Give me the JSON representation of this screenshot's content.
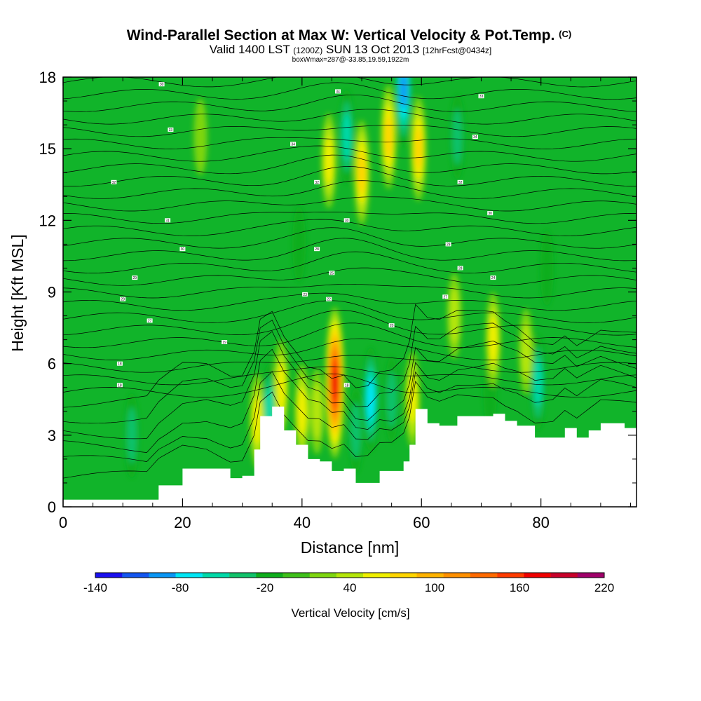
{
  "chart_data": {
    "type": "heatmap",
    "title": "Wind-Parallel Section at Max W: Vertical Velocity & Pot.Temp.",
    "title_mark": "(C)",
    "subtitle_main": "Valid 1400 LST",
    "subtitle_utc": "(1200Z)",
    "subtitle_date": "SUN 13 Oct 2013",
    "subtitle_fcst": "[12hrFcst@0434z]",
    "box_info": "boxWmax=287@-33.85,19.59,1922m",
    "xlabel": "Distance [nm]",
    "ylabel": "Height [Kft MSL]",
    "xlim": [
      0,
      96
    ],
    "ylim": [
      0,
      18
    ],
    "xticks": [
      0,
      20,
      40,
      60,
      80
    ],
    "yticks": [
      0,
      3,
      6,
      9,
      12,
      15,
      18
    ],
    "x_tick_labels": [
      "0",
      "20",
      "40",
      "60",
      "80"
    ],
    "y_tick_labels": [
      "0",
      "3",
      "6",
      "9",
      "12",
      "15",
      "18"
    ],
    "colorbar": {
      "label": "Vertical Velocity [cm/s]",
      "levels": [
        -140,
        -120,
        -100,
        -80,
        -60,
        -40,
        -20,
        0,
        20,
        40,
        60,
        80,
        100,
        120,
        140,
        160,
        180,
        200,
        220
      ],
      "tick_labels": [
        "-140",
        "-80",
        "-20",
        "40",
        "100",
        "160",
        "220"
      ],
      "tick_values": [
        -140,
        -80,
        -20,
        40,
        100,
        160,
        220
      ],
      "colors": [
        "#1a10f0",
        "#1456f0",
        "#0a96f5",
        "#00e6f5",
        "#00d9a8",
        "#11c26a",
        "#0fae1c",
        "#3fc01a",
        "#7ed610",
        "#b4e60a",
        "#f0f000",
        "#ffd600",
        "#ffb300",
        "#ff9000",
        "#ff6a00",
        "#ff3c00",
        "#f00000",
        "#c8002a",
        "#a0006a"
      ]
    },
    "terrain": {
      "x": [
        0,
        8,
        14,
        16,
        20,
        24,
        28,
        30,
        32,
        33,
        35,
        37,
        39,
        41,
        43,
        45,
        47,
        49,
        51,
        53,
        55,
        57,
        58,
        59,
        61,
        63,
        66,
        72,
        74,
        76,
        79,
        82,
        84,
        86,
        88,
        90,
        94,
        96
      ],
      "y": [
        0.3,
        0.3,
        0.3,
        0.9,
        1.6,
        1.6,
        1.2,
        1.3,
        2.4,
        3.8,
        4.2,
        3.2,
        2.6,
        2.0,
        1.9,
        1.5,
        1.6,
        1.0,
        1.0,
        1.5,
        1.5,
        1.9,
        2.6,
        4.1,
        3.5,
        3.4,
        3.8,
        3.9,
        3.6,
        3.4,
        2.9,
        2.9,
        3.3,
        2.9,
        3.2,
        3.5,
        3.3,
        3.2
      ]
    },
    "updrafts": [
      {
        "x": 45.5,
        "y": 5.2,
        "value": 180
      },
      {
        "x": 42.5,
        "y": 4.0,
        "value": 40
      },
      {
        "x": 40.0,
        "y": 4.0,
        "value": 60
      },
      {
        "x": 36.5,
        "y": 5.0,
        "value": 60
      },
      {
        "x": 32.5,
        "y": 3.6,
        "value": 60
      },
      {
        "x": 58.5,
        "y": 4.5,
        "value": 60
      },
      {
        "x": 44.5,
        "y": 14.5,
        "value": 60
      },
      {
        "x": 50.0,
        "y": 14.0,
        "value": 80
      },
      {
        "x": 54.5,
        "y": 15.5,
        "value": 80
      },
      {
        "x": 59.5,
        "y": 15.0,
        "value": 80
      },
      {
        "x": 65.5,
        "y": 8.0,
        "value": 40
      },
      {
        "x": 72.0,
        "y": 7.0,
        "value": 60
      },
      {
        "x": 77.5,
        "y": 6.5,
        "value": 40
      },
      {
        "x": 23.0,
        "y": 15.5,
        "value": 20
      }
    ],
    "downdrafts": [
      {
        "x": 51.5,
        "y": 4.5,
        "value": -80
      },
      {
        "x": 49.0,
        "y": 3.2,
        "value": -40
      },
      {
        "x": 55.0,
        "y": 4.5,
        "value": -40
      },
      {
        "x": 79.5,
        "y": 5.2,
        "value": -60
      },
      {
        "x": 71.5,
        "y": 4.8,
        "value": -20
      },
      {
        "x": 11.5,
        "y": 3.0,
        "value": -40
      },
      {
        "x": 34.5,
        "y": 4.0,
        "value": -60
      },
      {
        "x": 47.5,
        "y": 15.5,
        "value": -60
      },
      {
        "x": 57.0,
        "y": 17.5,
        "value": -100
      },
      {
        "x": 66.0,
        "y": 15.5,
        "value": -40
      },
      {
        "x": 81.0,
        "y": 10.0,
        "value": -20
      },
      {
        "x": 39.5,
        "y": 11.0,
        "value": -20
      }
    ],
    "contour_labels": [
      {
        "x": 16.5,
        "y": 17.7,
        "text": "30"
      },
      {
        "x": 18.0,
        "y": 15.8,
        "text": "33"
      },
      {
        "x": 8.5,
        "y": 13.6,
        "text": "32"
      },
      {
        "x": 17.5,
        "y": 12.0,
        "text": "31"
      },
      {
        "x": 20.0,
        "y": 10.8,
        "text": "30"
      },
      {
        "x": 12.0,
        "y": 9.6,
        "text": "29"
      },
      {
        "x": 10.0,
        "y": 8.7,
        "text": "28"
      },
      {
        "x": 14.5,
        "y": 7.8,
        "text": "27"
      },
      {
        "x": 27.0,
        "y": 6.9,
        "text": "19"
      },
      {
        "x": 9.5,
        "y": 6.0,
        "text": "18"
      },
      {
        "x": 9.5,
        "y": 5.1,
        "text": "18"
      },
      {
        "x": 46.0,
        "y": 17.4,
        "text": "34"
      },
      {
        "x": 70.0,
        "y": 17.2,
        "text": "33"
      },
      {
        "x": 38.5,
        "y": 15.2,
        "text": "34"
      },
      {
        "x": 69.0,
        "y": 15.5,
        "text": "34"
      },
      {
        "x": 42.5,
        "y": 13.6,
        "text": "32"
      },
      {
        "x": 66.5,
        "y": 13.6,
        "text": "32"
      },
      {
        "x": 47.5,
        "y": 12.0,
        "text": "30"
      },
      {
        "x": 71.5,
        "y": 12.3,
        "text": "30"
      },
      {
        "x": 42.5,
        "y": 10.8,
        "text": "28"
      },
      {
        "x": 64.5,
        "y": 11.0,
        "text": "29"
      },
      {
        "x": 45.0,
        "y": 9.8,
        "text": "25"
      },
      {
        "x": 66.5,
        "y": 10.0,
        "text": "28"
      },
      {
        "x": 40.5,
        "y": 8.9,
        "text": "23"
      },
      {
        "x": 44.5,
        "y": 8.7,
        "text": "22"
      },
      {
        "x": 72.0,
        "y": 9.6,
        "text": "24"
      },
      {
        "x": 64.0,
        "y": 8.8,
        "text": "27"
      },
      {
        "x": 55.0,
        "y": 7.6,
        "text": "20"
      },
      {
        "x": 47.5,
        "y": 5.1,
        "text": "18"
      }
    ]
  }
}
